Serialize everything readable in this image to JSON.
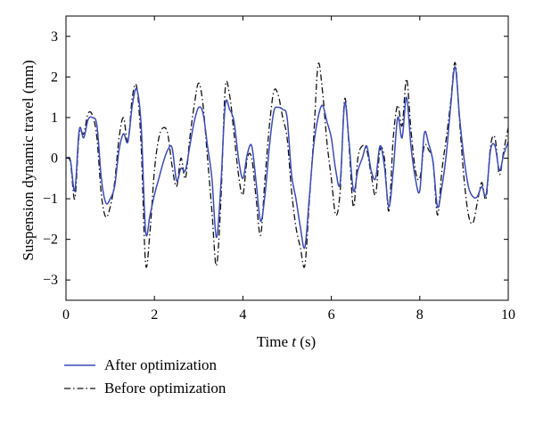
{
  "chart_data": {
    "type": "line",
    "title": "",
    "xlabel": {
      "prefix": "Time ",
      "var": "t",
      "unit": " (s)"
    },
    "ylabel": "Suspension dynamic travel (mm)",
    "xlim": [
      0,
      10
    ],
    "ylim": [
      -3.5,
      3.5
    ],
    "xticks": [
      0,
      2,
      4,
      6,
      8,
      10
    ],
    "yticks": [
      -3,
      -2,
      -1,
      0,
      1,
      2,
      3
    ],
    "grid": false,
    "legend_position": "bottom-left-outside",
    "series": [
      {
        "name": "After optimization",
        "color": "#3b4bb5",
        "style": "solid",
        "x": [
          0,
          0.1,
          0.2,
          0.3,
          0.4,
          0.5,
          0.6,
          0.7,
          0.8,
          0.9,
          1.0,
          1.1,
          1.2,
          1.3,
          1.4,
          1.5,
          1.6,
          1.7,
          1.8,
          1.9,
          2.0,
          2.1,
          2.2,
          2.3,
          2.4,
          2.5,
          2.6,
          2.7,
          2.8,
          2.9,
          3.0,
          3.1,
          3.2,
          3.3,
          3.4,
          3.5,
          3.6,
          3.7,
          3.8,
          3.9,
          4.0,
          4.1,
          4.2,
          4.3,
          4.4,
          4.5,
          4.6,
          4.7,
          4.8,
          4.9,
          5.0,
          5.1,
          5.2,
          5.3,
          5.4,
          5.5,
          5.6,
          5.7,
          5.8,
          5.9,
          6.0,
          6.1,
          6.2,
          6.3,
          6.4,
          6.5,
          6.6,
          6.7,
          6.8,
          6.9,
          7.0,
          7.1,
          7.2,
          7.3,
          7.4,
          7.5,
          7.6,
          7.7,
          7.8,
          7.9,
          8.0,
          8.1,
          8.2,
          8.3,
          8.4,
          8.5,
          8.6,
          8.7,
          8.8,
          8.9,
          9.0,
          9.1,
          9.2,
          9.3,
          9.4,
          9.5,
          9.6,
          9.7,
          9.8,
          9.9,
          10.0
        ],
        "y": [
          0,
          -0.05,
          -0.8,
          0.7,
          0.5,
          0.95,
          1.0,
          0.8,
          -0.5,
          -1.1,
          -1.0,
          -0.7,
          0.2,
          0.6,
          0.4,
          1.3,
          1.7,
          0.8,
          -1.8,
          -1.4,
          -0.9,
          -0.5,
          -0.1,
          0.2,
          0.25,
          -0.55,
          -0.25,
          -0.3,
          0.3,
          0.9,
          1.25,
          1.1,
          0.3,
          -0.5,
          -1.95,
          -0.7,
          1.3,
          1.2,
          0.9,
          0.0,
          -0.5,
          0.1,
          0.3,
          -0.6,
          -1.55,
          -0.9,
          0.3,
          1.15,
          1.25,
          1.2,
          1.0,
          -0.4,
          -1.0,
          -1.7,
          -2.2,
          -1.0,
          0.3,
          1.0,
          1.3,
          0.9,
          0.5,
          -0.3,
          -0.6,
          1.35,
          0.4,
          -0.8,
          -0.3,
          0.0,
          0.3,
          -0.3,
          -0.5,
          0.3,
          -0.2,
          -1.2,
          -0.3,
          1.0,
          0.5,
          1.5,
          0.3,
          -0.5,
          -0.8,
          0.6,
          0.35,
          -0.1,
          -1.2,
          -0.7,
          0.1,
          1.3,
          2.25,
          1.0,
          0.0,
          -0.7,
          -0.95,
          -0.95,
          -0.7,
          -0.9,
          0.2,
          0.3,
          -0.3,
          0.1,
          0.4
        ]
      },
      {
        "name": "Before optimization",
        "color": "#111111",
        "style": "dashdot",
        "x": [
          0,
          0.1,
          0.2,
          0.3,
          0.4,
          0.5,
          0.6,
          0.7,
          0.8,
          0.9,
          1.0,
          1.1,
          1.2,
          1.3,
          1.4,
          1.5,
          1.6,
          1.7,
          1.8,
          1.9,
          2.0,
          2.1,
          2.2,
          2.3,
          2.4,
          2.5,
          2.6,
          2.7,
          2.8,
          2.9,
          3.0,
          3.1,
          3.2,
          3.3,
          3.4,
          3.5,
          3.6,
          3.7,
          3.8,
          3.9,
          4.0,
          4.1,
          4.2,
          4.3,
          4.4,
          4.5,
          4.6,
          4.7,
          4.8,
          4.9,
          5.0,
          5.1,
          5.2,
          5.3,
          5.4,
          5.5,
          5.6,
          5.7,
          5.8,
          5.9,
          6.0,
          6.1,
          6.2,
          6.3,
          6.4,
          6.5,
          6.6,
          6.7,
          6.8,
          6.9,
          7.0,
          7.1,
          7.2,
          7.3,
          7.4,
          7.5,
          7.6,
          7.7,
          7.8,
          7.9,
          8.0,
          8.1,
          8.2,
          8.3,
          8.4,
          8.5,
          8.6,
          8.7,
          8.8,
          8.9,
          9.0,
          9.1,
          9.2,
          9.3,
          9.4,
          9.5,
          9.6,
          9.7,
          9.8,
          9.9,
          10.0
        ],
        "y": [
          0,
          -0.1,
          -1.0,
          0.6,
          0.6,
          1.1,
          1.05,
          0.5,
          -0.9,
          -1.45,
          -1.2,
          -0.6,
          0.5,
          1.0,
          0.4,
          1.5,
          1.75,
          0.3,
          -2.6,
          -1.8,
          -0.3,
          0.5,
          0.75,
          0.6,
          -0.2,
          -0.7,
          0.0,
          -0.5,
          0.5,
          1.3,
          1.85,
          1.3,
          0.0,
          -1.3,
          -2.65,
          -1.1,
          1.7,
          1.55,
          0.6,
          -0.4,
          -0.9,
          0.0,
          0.0,
          -1.0,
          -1.9,
          -0.5,
          0.8,
          1.65,
          1.55,
          1.0,
          0.5,
          -0.8,
          -1.7,
          -2.2,
          -2.65,
          -1.1,
          0.5,
          2.3,
          1.65,
          0.4,
          -0.5,
          -1.4,
          -0.8,
          1.45,
          0.3,
          -1.2,
          0.0,
          0.3,
          0.2,
          -0.4,
          -0.9,
          0.2,
          0.0,
          -1.3,
          0.5,
          1.3,
          0.8,
          1.95,
          0.7,
          -0.3,
          -0.5,
          0.3,
          0.2,
          -0.1,
          -1.4,
          -0.3,
          0.5,
          1.4,
          2.35,
          0.9,
          -0.5,
          -1.4,
          -1.6,
          -1.1,
          -0.6,
          -1.0,
          0.3,
          0.5,
          -0.4,
          0.2,
          0.75
        ]
      }
    ]
  }
}
